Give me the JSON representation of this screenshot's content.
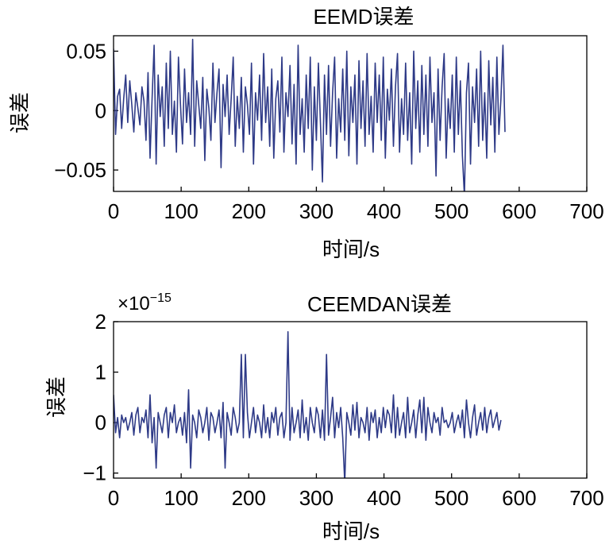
{
  "colors": {
    "series": "#2e3a87",
    "axis": "#000000",
    "background": "#ffffff"
  },
  "chart_data": [
    {
      "type": "line",
      "title": "EEMD误差",
      "xlabel": "时间/s",
      "ylabel": "误差",
      "xlim": [
        0,
        700
      ],
      "ylim": [
        -0.068,
        0.063
      ],
      "xticks": [
        0,
        100,
        200,
        300,
        400,
        500,
        600,
        700
      ],
      "xtick_labels": [
        "0",
        "100",
        "200",
        "300",
        "400",
        "500",
        "600",
        "700"
      ],
      "yticks": [
        0.05,
        0,
        -0.05
      ],
      "ytick_labels": [
        "0.05",
        "0",
        "−0.05"
      ],
      "grid": false,
      "series": [
        {
          "x_start": 0,
          "x_step": 3,
          "values": [
            0.052,
            -0.02,
            0.012,
            0.018,
            -0.015,
            0.01,
            0.03,
            -0.01,
            0.025,
            0.005,
            -0.018,
            0.015,
            0.002,
            -0.012,
            0.02,
            0.008,
            -0.025,
            0.032,
            -0.04,
            0.01,
            0.055,
            -0.045,
            0.03,
            -0.005,
            0.02,
            -0.03,
            0.04,
            -0.015,
            0.05,
            -0.02,
            0.008,
            -0.035,
            0.045,
            0.005,
            -0.028,
            0.035,
            -0.01,
            0.015,
            -0.02,
            0.06,
            -0.03,
            0.025,
            0.005,
            -0.015,
            0.028,
            -0.042,
            0.018,
            0.002,
            -0.025,
            0.04,
            -0.01,
            0.015,
            0.035,
            -0.048,
            0.022,
            -0.005,
            0.03,
            -0.02,
            0.01,
            0.045,
            -0.03,
            0.012,
            -0.015,
            0.028,
            -0.035,
            0.02,
            0.005,
            -0.02,
            0.04,
            -0.045,
            0.015,
            -0.008,
            0.03,
            -0.025,
            0.048,
            -0.01,
            0.02,
            -0.03,
            0.035,
            -0.04,
            0.01,
            0.025,
            -0.018,
            0.045,
            -0.035,
            0.015,
            -0.005,
            0.038,
            -0.028,
            0.022,
            -0.045,
            0.055,
            -0.02,
            0.01,
            -0.035,
            0.03,
            -0.015,
            0.045,
            -0.05,
            0.02,
            -0.025,
            0.04,
            -0.01,
            -0.06,
            0.03,
            -0.02,
            0.038,
            -0.03,
            0.015,
            0.045,
            -0.04,
            0.01,
            -0.018,
            0.035,
            -0.025,
            0.05,
            -0.038,
            0.02,
            -0.01,
            0.03,
            -0.045,
            0.042,
            -0.015,
            0.025,
            -0.03,
            0.048,
            -0.02,
            0.012,
            -0.035,
            0.04,
            -0.01,
            0.03,
            -0.025,
            0.045,
            -0.04,
            0.018,
            -0.008,
            0.035,
            -0.03,
            0.02,
            0.048,
            -0.035,
            0.01,
            -0.02,
            0.04,
            -0.025,
            0.015,
            -0.045,
            0.05,
            -0.015,
            0.025,
            -0.035,
            0.038,
            -0.02,
            0.03,
            -0.03,
            0.045,
            -0.01,
            0.015,
            -0.055,
            0.035,
            -0.025,
            0.02,
            0.048,
            -0.04,
            0.01,
            -0.015,
            0.03,
            -0.035,
            0.045,
            -0.02,
            0.025,
            -0.038,
            -0.072,
            0.015,
            0.04,
            -0.045,
            0.02,
            -0.01,
            0.035,
            -0.03,
            0.05,
            -0.025,
            0.015,
            -0.04,
            0.042,
            -0.012,
            0.028,
            -0.035,
            0.045,
            -0.02,
            0.01,
            0.055,
            -0.018
          ],
          "color": "#2e3a87"
        }
      ]
    },
    {
      "type": "line",
      "title": "CEEMDAN误差",
      "scale_label": "×10",
      "scale_exponent": "−15",
      "xlabel": "时间/s",
      "ylabel": "误差",
      "xlim": [
        0,
        700
      ],
      "ylim": [
        -1.1,
        2
      ],
      "xticks": [
        0,
        100,
        200,
        300,
        400,
        500,
        600,
        700
      ],
      "xtick_labels": [
        "0",
        "100",
        "200",
        "300",
        "400",
        "500",
        "600",
        "700"
      ],
      "yticks": [
        2,
        1,
        0,
        -1
      ],
      "ytick_labels": [
        "2",
        "1",
        "0",
        "−1"
      ],
      "grid": false,
      "series": [
        {
          "x_start": 0,
          "x_step": 3,
          "values": [
            0.55,
            -0.2,
            0.1,
            -0.3,
            0.15,
            0,
            0.1,
            -0.15,
            0,
            0.2,
            -0.25,
            0.15,
            0.3,
            -0.2,
            0.1,
            0,
            0.25,
            -0.3,
            0.55,
            -0.4,
            0.1,
            -0.9,
            0.2,
            0,
            -0.2,
            0.15,
            0.3,
            -0.3,
            0.2,
            0,
            0.35,
            -0.2,
            0,
            0.1,
            -0.25,
            0.2,
            -0.4,
            0.65,
            -0.9,
            0.15,
            0,
            -0.3,
            0.25,
            0.1,
            -0.2,
            0,
            0.3,
            -0.35,
            0.2,
            0.1,
            -0.2,
            0,
            0.25,
            -0.3,
            0.4,
            -0.9,
            0.2,
            0,
            -0.25,
            0.3,
            0.1,
            -0.2,
            0,
            1.35,
            -0.3,
            1.35,
            0.2,
            -0.3,
            0,
            0.3,
            -0.2,
            0.15,
            0,
            -0.3,
            0.35,
            -0.2,
            0.1,
            -0.3,
            0.2,
            0,
            0.3,
            -0.25,
            0.1,
            0.2,
            -0.3,
            0,
            1.8,
            -0.35,
            0.3,
            -0.2,
            0,
            0.25,
            -0.3,
            0.45,
            -0.2,
            0.1,
            -0.35,
            0.3,
            0,
            -0.2,
            0.3,
            0.15,
            -0.3,
            0.25,
            -0.35,
            1.35,
            -0.25,
            0.1,
            0.5,
            -0.3,
            0.2,
            -0.1,
            0.3,
            -0.3,
            -1.2,
            0.2,
            0,
            -0.25,
            0.35,
            -0.15,
            0.4,
            -0.3,
            0.1,
            0,
            -0.2,
            0.3,
            -0.35,
            0.2,
            0,
            0.25,
            -0.3,
            0.1,
            -0.2,
            0.3,
            -0.1,
            0.25,
            0.15,
            -0.2,
            0.55,
            -0.3,
            0.3,
            -0.25,
            0,
            0.2,
            -0.3,
            0.5,
            -0.2,
            0,
            0.25,
            -0.3,
            0.15,
            0.45,
            -0.2,
            0.5,
            -0.35,
            0.3,
            0,
            -0.2,
            0.2,
            0,
            0.1,
            -0.25,
            0.3,
            0,
            0.05,
            -0.1,
            0,
            0.2,
            -0.2,
            0,
            0.15,
            -0.1,
            0.25,
            -0.3,
            0.45,
            0,
            -0.3,
            0.1,
            0.35,
            -0.25,
            0,
            0.2,
            -0.15,
            0.3,
            -0.2,
            0.1,
            0.25,
            -0.1,
            0.05,
            0.2,
            -0.15,
            0.05
          ],
          "color": "#2e3a87"
        }
      ]
    }
  ]
}
